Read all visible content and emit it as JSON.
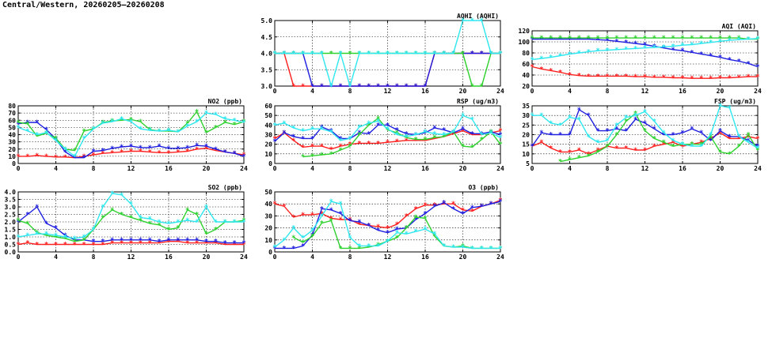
{
  "page_title": "Central/Western, 20260205—20260208",
  "series_colors": [
    "#ff2020",
    "#1f1fe0",
    "#2ed12e",
    "#2fe7ef"
  ],
  "chart_data": [
    {
      "type": "line",
      "title": "AQHI (AQHI)",
      "xlim": [
        0,
        24
      ],
      "ylim": [
        3,
        5
      ],
      "xticks": [
        "0",
        "4",
        "8",
        "12",
        "16",
        "20",
        "24"
      ],
      "yticks": [
        "3.0",
        "3.5",
        "4.0",
        "4.5",
        "5.0"
      ],
      "grid": true,
      "x": [
        0,
        1,
        2,
        3,
        4,
        5,
        6,
        7,
        8,
        9,
        10,
        11,
        12,
        13,
        14,
        15,
        16,
        17,
        18,
        19,
        20,
        21,
        22,
        23,
        24
      ],
      "series": [
        {
          "values": [
            4,
            4,
            3,
            3,
            3,
            3,
            3,
            3,
            3,
            3,
            3,
            3,
            3,
            3,
            3,
            3,
            3,
            4,
            4,
            4,
            4,
            4,
            4,
            4,
            4
          ]
        },
        {
          "values": [
            4,
            4,
            4,
            4,
            3,
            3,
            3,
            3,
            3,
            3,
            3,
            3,
            3,
            3,
            3,
            3,
            3,
            4,
            4,
            4,
            4,
            4,
            4,
            4,
            4
          ]
        },
        {
          "values": [
            4,
            4,
            4,
            4,
            4,
            4,
            4,
            4,
            4,
            4,
            4,
            4,
            4,
            4,
            4,
            4,
            4,
            4,
            4,
            4,
            4,
            3,
            3,
            4,
            4
          ]
        },
        {
          "values": [
            4,
            4,
            4,
            4,
            4,
            4,
            3,
            4,
            3,
            4,
            4,
            4,
            4,
            4,
            4,
            4,
            4,
            4,
            4,
            4,
            5,
            5,
            5,
            4,
            4
          ]
        }
      ]
    },
    {
      "type": "line",
      "title": "AQI (AQI)",
      "xlim": [
        0,
        24
      ],
      "ylim": [
        20,
        120
      ],
      "xticks": [
        "0",
        "4",
        "8",
        "12",
        "16",
        "20",
        "24"
      ],
      "yticks": [
        "20",
        "40",
        "60",
        "80",
        "100",
        "120"
      ],
      "grid": true,
      "x": [
        0,
        1,
        2,
        3,
        4,
        5,
        6,
        7,
        8,
        9,
        10,
        11,
        12,
        13,
        14,
        15,
        16,
        17,
        18,
        19,
        20,
        21,
        22,
        23,
        24
      ],
      "series": [
        {
          "values": [
            55,
            51,
            48,
            45,
            41,
            39,
            38,
            38,
            38,
            38,
            38,
            37,
            37,
            36,
            36,
            35,
            35,
            34,
            34,
            34,
            35,
            35,
            36,
            37,
            37
          ]
        },
        {
          "values": [
            105,
            105,
            105,
            105,
            105,
            105,
            105,
            104,
            103,
            101,
            99,
            97,
            95,
            92,
            89,
            86,
            84,
            81,
            78,
            75,
            72,
            68,
            65,
            61,
            55
          ]
        },
        {
          "values": [
            107,
            107,
            107,
            107,
            107,
            107,
            107,
            107,
            107,
            107,
            107,
            107,
            107,
            107,
            107,
            107,
            107,
            107,
            107,
            107,
            107,
            107,
            107,
            105,
            105
          ]
        },
        {
          "values": [
            68,
            70,
            72,
            75,
            78,
            80,
            82,
            84,
            85,
            86,
            87,
            88,
            89,
            90,
            91,
            92,
            94,
            95,
            97,
            99,
            101,
            103,
            104,
            105,
            106
          ]
        }
      ]
    },
    {
      "type": "line",
      "title": "NO2 (ppb)",
      "xlim": [
        0,
        24
      ],
      "ylim": [
        0,
        80
      ],
      "xticks": [
        "0",
        "4",
        "8",
        "12",
        "16",
        "20",
        "24"
      ],
      "yticks": [
        "0",
        "10",
        "20",
        "30",
        "40",
        "50",
        "60",
        "70",
        "80"
      ],
      "grid": true,
      "x": [
        0,
        1,
        2,
        3,
        4,
        5,
        6,
        7,
        8,
        9,
        10,
        11,
        12,
        13,
        14,
        15,
        16,
        17,
        18,
        19,
        20,
        21,
        22,
        23,
        24
      ],
      "series": [
        {
          "values": [
            10,
            10,
            11,
            10,
            9,
            9,
            8,
            10,
            12,
            14,
            15,
            16,
            17,
            17,
            16,
            15,
            15,
            16,
            17,
            20,
            21,
            18,
            16,
            14,
            12
          ]
        },
        {
          "values": [
            55,
            57,
            57,
            47,
            34,
            16,
            8,
            8,
            17,
            18,
            21,
            23,
            24,
            22,
            22,
            24,
            21,
            21,
            22,
            25,
            24,
            20,
            16,
            14,
            10
          ]
        },
        {
          "values": [
            57,
            55,
            38,
            42,
            35,
            20,
            18,
            45,
            48,
            57,
            59,
            60,
            61,
            58,
            47,
            45,
            45,
            44,
            56,
            72,
            43,
            50,
            57,
            54,
            58
          ]
        },
        {
          "values": [
            50,
            45,
            40,
            43,
            32,
            20,
            10,
            35,
            48,
            56,
            58,
            62,
            58,
            48,
            46,
            45,
            46,
            44,
            52,
            58,
            70,
            68,
            62,
            60,
            57
          ]
        }
      ]
    },
    {
      "type": "line",
      "title": "RSP (ug/m3)",
      "xlim": [
        0,
        24
      ],
      "ylim": [
        0,
        60
      ],
      "xticks": [
        "0",
        "4",
        "8",
        "12",
        "16",
        "20",
        "24"
      ],
      "yticks": [
        "0",
        "10",
        "20",
        "30",
        "40",
        "50",
        "60"
      ],
      "grid": true,
      "x": [
        0,
        1,
        2,
        3,
        4,
        5,
        6,
        7,
        8,
        9,
        10,
        11,
        12,
        13,
        14,
        15,
        16,
        17,
        18,
        19,
        20,
        21,
        22,
        23,
        24
      ],
      "series": [
        {
          "values": [
            26,
            32,
            24,
            17,
            18,
            18,
            15,
            18,
            20,
            21,
            21,
            21,
            22,
            23,
            24,
            24,
            24,
            26,
            28,
            31,
            34,
            30,
            30,
            32,
            34
          ]
        },
        {
          "values": [
            23,
            32,
            28,
            26,
            26,
            38,
            34,
            26,
            26,
            32,
            31,
            40,
            40,
            35,
            31,
            30,
            32,
            37,
            35,
            32,
            36,
            31,
            31,
            33,
            30
          ]
        },
        {
          "values": [
            null,
            null,
            null,
            7,
            8,
            9,
            10,
            14,
            18,
            30,
            40,
            47,
            35,
            32,
            27,
            25,
            25,
            27,
            28,
            33,
            18,
            17,
            25,
            33,
            20
          ]
        },
        {
          "values": [
            40,
            42,
            37,
            34,
            36,
            36,
            33,
            24,
            26,
            38,
            42,
            44,
            36,
            30,
            28,
            30,
            33,
            31,
            30,
            33,
            50,
            46,
            30,
            32,
            27
          ]
        }
      ]
    },
    {
      "type": "line",
      "title": "FSP (ug/m3)",
      "xlim": [
        0,
        24
      ],
      "ylim": [
        5,
        35
      ],
      "xticks": [
        "0",
        "4",
        "8",
        "12",
        "16",
        "20",
        "24"
      ],
      "yticks": [
        "5",
        "10",
        "15",
        "20",
        "25",
        "30",
        "35"
      ],
      "grid": true,
      "x": [
        0,
        1,
        2,
        3,
        4,
        5,
        6,
        7,
        8,
        9,
        10,
        11,
        12,
        13,
        14,
        15,
        16,
        17,
        18,
        19,
        20,
        21,
        22,
        23,
        24
      ],
      "series": [
        {
          "values": [
            14,
            16,
            13,
            11,
            11,
            12,
            10,
            12,
            14,
            13,
            13,
            12,
            12,
            14,
            15,
            16,
            14,
            15,
            16,
            18,
            21,
            18,
            18,
            19,
            18
          ]
        },
        {
          "values": [
            14,
            21,
            20,
            20,
            20,
            33,
            30,
            22,
            22,
            23,
            22,
            28,
            26,
            23,
            20,
            20,
            21,
            23,
            21,
            17,
            22,
            19,
            19,
            17,
            14
          ]
        },
        {
          "values": [
            null,
            null,
            null,
            6,
            7,
            8,
            9,
            11,
            14,
            20,
            27,
            31,
            22,
            18,
            16,
            14,
            15,
            15,
            15,
            19,
            11,
            10,
            14,
            20,
            12
          ]
        },
        {
          "values": [
            30,
            30,
            26,
            25,
            29,
            28,
            19,
            16,
            17,
            25,
            29,
            30,
            32,
            27,
            21,
            17,
            15,
            14,
            14,
            20,
            35,
            34,
            19,
            16,
            13
          ]
        }
      ]
    },
    {
      "type": "line",
      "title": "SO2 (ppb)",
      "xlim": [
        0,
        24
      ],
      "ylim": [
        0,
        4
      ],
      "xticks": [
        "0",
        "4",
        "8",
        "12",
        "16",
        "20",
        "24"
      ],
      "yticks": [
        "0.0",
        "0.5",
        "1.0",
        "1.5",
        "2.0",
        "2.5",
        "3.0",
        "3.5",
        "4.0"
      ],
      "grid": true,
      "x": [
        0,
        1,
        2,
        3,
        4,
        5,
        6,
        7,
        8,
        9,
        10,
        11,
        12,
        13,
        14,
        15,
        16,
        17,
        18,
        19,
        20,
        21,
        22,
        23,
        24
      ],
      "series": [
        {
          "values": [
            0.5,
            0.6,
            0.5,
            0.5,
            0.5,
            0.5,
            0.5,
            0.5,
            0.5,
            0.5,
            0.6,
            0.6,
            0.6,
            0.6,
            0.6,
            0.6,
            0.7,
            0.7,
            0.6,
            0.6,
            0.6,
            0.6,
            0.5,
            0.5,
            0.5
          ]
        },
        {
          "values": [
            2.0,
            2.5,
            3.0,
            1.9,
            1.6,
            1.1,
            0.8,
            0.8,
            0.7,
            0.7,
            0.8,
            0.8,
            0.8,
            0.8,
            0.8,
            0.7,
            0.8,
            0.8,
            0.8,
            0.8,
            0.7,
            0.7,
            0.6,
            0.6,
            0.6
          ]
        },
        {
          "values": [
            2.1,
            1.9,
            1.3,
            1.1,
            1.0,
            0.9,
            0.7,
            0.8,
            1.5,
            2.3,
            2.8,
            2.5,
            2.3,
            2.1,
            1.9,
            1.8,
            1.5,
            1.6,
            2.8,
            2.5,
            1.2,
            1.5,
            2.0,
            2.0,
            2.1
          ]
        },
        {
          "values": [
            1.0,
            1.1,
            1.2,
            1.2,
            1.1,
            1.0,
            0.9,
            1.0,
            1.5,
            3.0,
            3.9,
            3.8,
            3.2,
            2.3,
            2.2,
            2.0,
            1.9,
            2.0,
            2.1,
            2.0,
            3.0,
            2.0,
            2.0,
            2.0,
            2.0
          ]
        }
      ]
    },
    {
      "type": "line",
      "title": "O3 (ppb)",
      "xlim": [
        0,
        24
      ],
      "ylim": [
        0,
        50
      ],
      "xticks": [
        "0",
        "4",
        "8",
        "12",
        "16",
        "20",
        "24"
      ],
      "yticks": [
        "0",
        "10",
        "20",
        "30",
        "40",
        "50"
      ],
      "grid": true,
      "x": [
        0,
        1,
        2,
        3,
        4,
        5,
        6,
        7,
        8,
        9,
        10,
        11,
        12,
        13,
        14,
        15,
        16,
        17,
        18,
        19,
        20,
        21,
        22,
        23,
        24
      ],
      "series": [
        {
          "values": [
            40,
            38,
            29,
            31,
            31,
            32,
            28,
            27,
            27,
            23,
            22,
            21,
            20,
            23,
            30,
            36,
            39,
            39,
            40,
            40,
            35,
            34,
            38,
            40,
            43
          ]
        },
        {
          "values": [
            3,
            3,
            3,
            5,
            14,
            36,
            35,
            32,
            26,
            25,
            22,
            18,
            16,
            19,
            20,
            27,
            32,
            38,
            41,
            36,
            32,
            37,
            38,
            40,
            42
          ]
        },
        {
          "values": [
            null,
            null,
            12,
            8,
            13,
            24,
            26,
            3,
            3,
            3,
            4,
            6,
            9,
            12,
            20,
            29,
            28,
            13,
            5,
            4,
            5,
            3,
            3,
            3,
            3
          ]
        },
        {
          "values": [
            4,
            10,
            20,
            12,
            18,
            30,
            42,
            40,
            12,
            5,
            5,
            5,
            9,
            16,
            15,
            17,
            19,
            15,
            5,
            4,
            4,
            3,
            3,
            3,
            3
          ]
        }
      ]
    }
  ]
}
